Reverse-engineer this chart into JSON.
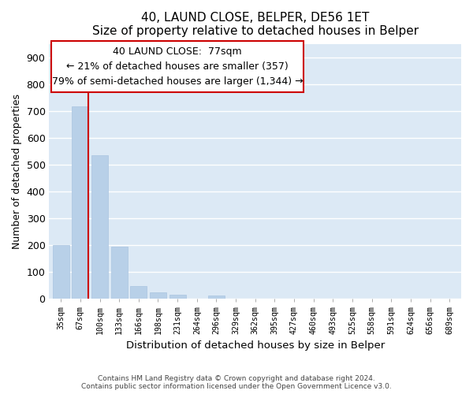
{
  "title": "40, LAUND CLOSE, BELPER, DE56 1ET",
  "subtitle": "Size of property relative to detached houses in Belper",
  "xlabel": "Distribution of detached houses by size in Belper",
  "ylabel": "Number of detached properties",
  "bar_labels": [
    "35sqm",
    "67sqm",
    "100sqm",
    "133sqm",
    "166sqm",
    "198sqm",
    "231sqm",
    "264sqm",
    "296sqm",
    "329sqm",
    "362sqm",
    "395sqm",
    "427sqm",
    "460sqm",
    "493sqm",
    "525sqm",
    "558sqm",
    "591sqm",
    "624sqm",
    "656sqm",
    "689sqm"
  ],
  "bar_values": [
    200,
    715,
    535,
    193,
    46,
    22,
    14,
    0,
    10,
    0,
    0,
    0,
    0,
    0,
    0,
    0,
    0,
    0,
    0,
    0,
    0
  ],
  "bar_color": "#b8d0e8",
  "bar_edge_color": "#aac4e0",
  "grid_color": "#ffffff",
  "bg_color": "#dce9f5",
  "ylim": [
    0,
    950
  ],
  "yticks": [
    0,
    100,
    200,
    300,
    400,
    500,
    600,
    700,
    800,
    900
  ],
  "property_line_color": "#cc0000",
  "property_bar_index": 1,
  "annotation_box_text": "40 LAUND CLOSE:  77sqm\n← 21% of detached houses are smaller (357)\n79% of semi-detached houses are larger (1,344) →",
  "footer_line1": "Contains HM Land Registry data © Crown copyright and database right 2024.",
  "footer_line2": "Contains public sector information licensed under the Open Government Licence v3.0."
}
